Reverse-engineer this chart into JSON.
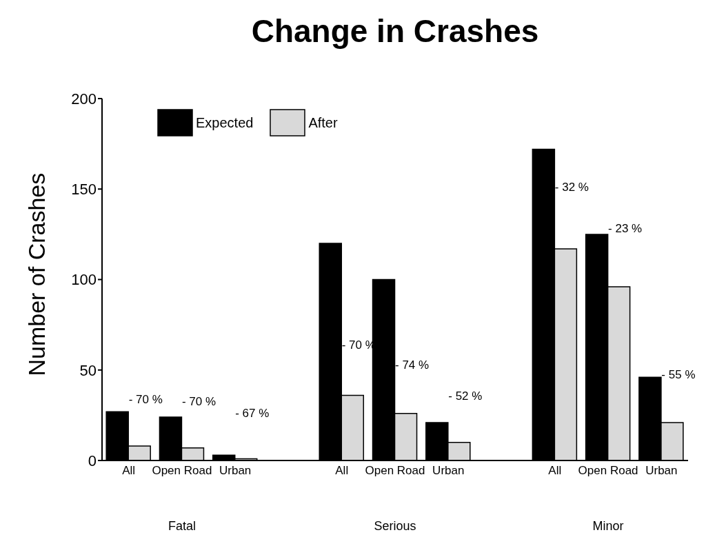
{
  "chart_data": {
    "type": "bar",
    "title": "Change in Crashes",
    "ylabel": "Number of Crashes",
    "categories": [
      "All",
      "Open Road",
      "Urban",
      null,
      "All",
      "Open Road",
      "Urban",
      null,
      "All",
      "Open Road",
      "Urban"
    ],
    "series": [
      {
        "name": "Expected",
        "color": "#000000",
        "values": [
          27,
          24,
          3,
          null,
          120,
          100,
          21,
          null,
          172,
          125,
          46
        ]
      },
      {
        "name": "After",
        "color": "#d9d9d9",
        "values": [
          8,
          7,
          1,
          null,
          36,
          26,
          10,
          null,
          117,
          96,
          21
        ]
      }
    ],
    "annotations": [
      "Fatal",
      "Serious",
      "Minor",
      "- 70 %",
      "- 70 %",
      "- 67 %",
      "- 70 %",
      "- 74 %",
      "- 52 %",
      "- 32 %",
      "- 23 %",
      "- 55 %"
    ],
    "ylim": [
      0,
      200
    ],
    "yticks": [
      0,
      50,
      100,
      150,
      200
    ],
    "grid": false,
    "legend": "top left"
  }
}
